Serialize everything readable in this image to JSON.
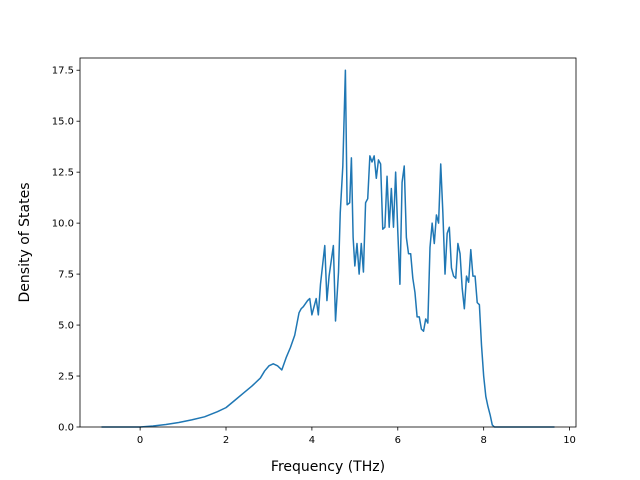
{
  "chart_data": {
    "type": "line",
    "title": "",
    "xlabel": "Frequency (THz)",
    "ylabel": "Density of States",
    "xlim": [
      -1.4,
      10.15
    ],
    "ylim": [
      0,
      18.1
    ],
    "xticks": [
      0,
      2,
      4,
      6,
      8,
      10
    ],
    "xtick_labels": [
      "0",
      "2",
      "4",
      "6",
      "8",
      "10"
    ],
    "yticks": [
      0,
      2.5,
      5,
      7.5,
      10,
      12.5,
      15,
      17.5
    ],
    "ytick_labels": [
      "0.0",
      "2.5",
      "5.0",
      "7.5",
      "10.0",
      "12.5",
      "15.0",
      "17.5"
    ],
    "grid": false,
    "legend": "none",
    "line_color": "#1f77b4",
    "series": [
      {
        "x": [
          -0.9,
          -0.5,
          0,
          0.3,
          0.6,
          0.9,
          1.2,
          1.5,
          1.8,
          2.0,
          2.2,
          2.4,
          2.6,
          2.8,
          2.9,
          3.0,
          3.1,
          3.2,
          3.3,
          3.4,
          3.5,
          3.6,
          3.7,
          3.75,
          3.8,
          3.9,
          3.95,
          4.0,
          4.1,
          4.15,
          4.2,
          4.3,
          4.35,
          4.4,
          4.5,
          4.55,
          4.62,
          4.66,
          4.72,
          4.78,
          4.82,
          4.88,
          4.92,
          4.96,
          5.0,
          5.05,
          5.1,
          5.15,
          5.2,
          5.25,
          5.3,
          5.35,
          5.4,
          5.45,
          5.5,
          5.55,
          5.6,
          5.65,
          5.7,
          5.75,
          5.8,
          5.85,
          5.9,
          5.95,
          6.0,
          6.05,
          6.1,
          6.15,
          6.2,
          6.25,
          6.3,
          6.35,
          6.4,
          6.45,
          6.5,
          6.55,
          6.6,
          6.65,
          6.7,
          6.75,
          6.8,
          6.85,
          6.9,
          6.95,
          7.0,
          7.05,
          7.1,
          7.15,
          7.2,
          7.25,
          7.3,
          7.35,
          7.4,
          7.45,
          7.5,
          7.55,
          7.6,
          7.65,
          7.7,
          7.75,
          7.8,
          7.85,
          7.9,
          7.95,
          8.0,
          8.05,
          8.1,
          8.15,
          8.2,
          8.25,
          8.3,
          8.35,
          8.4,
          8.45,
          8.55,
          8.65,
          8.75,
          8.85,
          9.0,
          9.3,
          9.65
        ],
        "y": [
          0,
          0,
          0,
          0.05,
          0.12,
          0.22,
          0.35,
          0.5,
          0.75,
          0.95,
          1.3,
          1.65,
          2.0,
          2.4,
          2.75,
          3.0,
          3.1,
          3.0,
          2.8,
          3.4,
          3.9,
          4.5,
          5.6,
          5.8,
          5.9,
          6.2,
          6.3,
          5.5,
          6.3,
          5.5,
          7.0,
          8.9,
          6.2,
          7.4,
          8.9,
          5.2,
          7.6,
          10.5,
          12.8,
          17.5,
          10.9,
          11.0,
          13.2,
          9.3,
          7.9,
          9.0,
          7.5,
          9.0,
          7.6,
          11.0,
          11.2,
          13.3,
          13.0,
          13.3,
          12.2,
          13.1,
          12.9,
          9.7,
          9.8,
          12.3,
          9.8,
          11.7,
          9.8,
          12.5,
          9.6,
          7.0,
          12.0,
          12.8,
          9.3,
          8.5,
          8.5,
          7.3,
          6.6,
          5.4,
          5.4,
          4.8,
          4.7,
          5.3,
          5.1,
          8.8,
          10.0,
          9.0,
          10.4,
          10.0,
          12.9,
          10.5,
          7.5,
          9.5,
          9.8,
          7.8,
          7.4,
          7.3,
          9.0,
          8.5,
          6.8,
          5.8,
          7.4,
          7.1,
          8.7,
          7.4,
          7.4,
          6.1,
          6.0,
          4.0,
          2.5,
          1.5,
          1.0,
          0.6,
          0.1,
          0,
          0,
          0,
          0,
          0,
          0,
          0,
          0,
          0,
          0,
          0,
          0
        ]
      }
    ]
  }
}
